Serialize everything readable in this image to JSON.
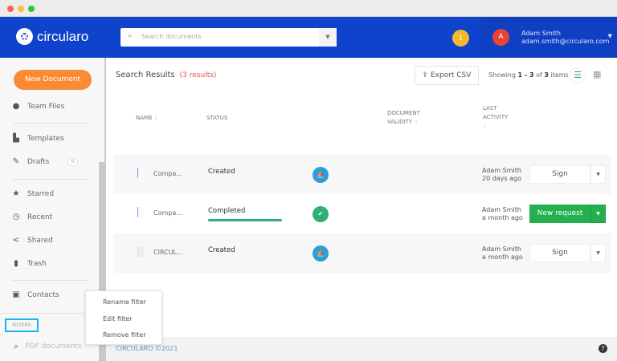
{
  "window": {
    "dots": [
      "#fe5f57",
      "#febc2e",
      "#28c840"
    ]
  },
  "header": {
    "brand": "circularo",
    "search_placeholder": "Search documents",
    "notifications": "1",
    "user": {
      "initial": "A",
      "name": "Adam Smith",
      "email": "adam.smith@circularo.com"
    }
  },
  "sidebar": {
    "new_document": "New Document",
    "items": [
      {
        "label": "Team Files",
        "icon": "globe-icon"
      },
      {
        "label": "Templates",
        "icon": "templates-icon"
      },
      {
        "label": "Drafts",
        "icon": "edit-icon",
        "count": "0"
      },
      {
        "label": "Starred",
        "icon": "star-icon"
      },
      {
        "label": "Recent",
        "icon": "clock-icon"
      },
      {
        "label": "Shared",
        "icon": "share-icon"
      },
      {
        "label": "Trash",
        "icon": "trash-icon"
      },
      {
        "label": "Contacts",
        "icon": "contacts-icon"
      }
    ],
    "filters_label": "FILTERS",
    "filter_item": "PDF documents"
  },
  "main": {
    "title": "Search Results",
    "count": "(3 results)",
    "export": "Export CSV",
    "showing": {
      "prefix": "Showing",
      "range": "1 - 3",
      "of": "of",
      "total": "3",
      "suffix": "items"
    },
    "columns": {
      "name": "NAME",
      "status": "STATUS",
      "validity_1": "DOCUMENT",
      "validity_2": "VALIDITY",
      "activity_1": "LAST",
      "activity_2": "ACTIVITY"
    },
    "rows": [
      {
        "name": "Compa...",
        "status": "Created",
        "validity": "pending",
        "user": "Adam Smith",
        "time": "20 days ago",
        "action": "Sign"
      },
      {
        "name": "Compa...",
        "status": "Completed",
        "progress": 100,
        "validity": "valid",
        "user": "Adam Smith",
        "time": "a month ago",
        "action": "New request"
      },
      {
        "name": "CIRCUL...",
        "status": "Created",
        "validity": "pending",
        "user": "Adam Smith",
        "time": "a month ago",
        "action": "Sign"
      }
    ]
  },
  "footer": {
    "copyright": "CIRCULARO ©2021",
    "help": "?"
  },
  "context_menu": {
    "items": [
      "Rename filter",
      "Edit filter",
      "Remove filter"
    ]
  }
}
